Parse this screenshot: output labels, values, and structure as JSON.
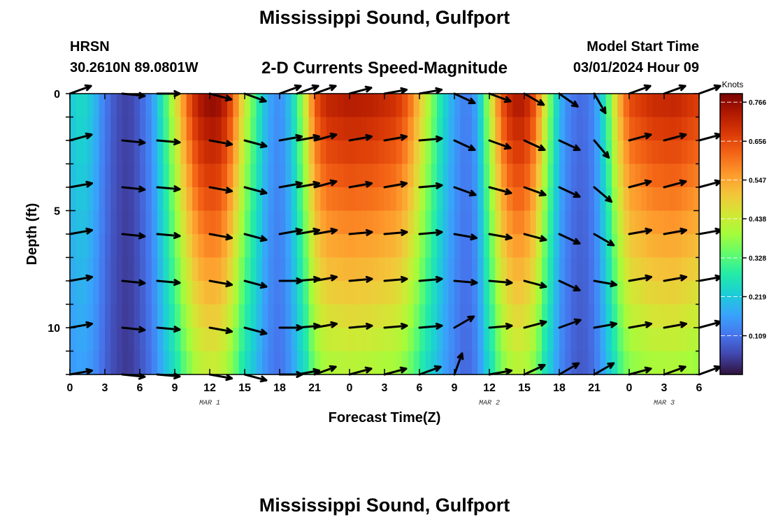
{
  "header": {
    "title": "Mississippi Sound, Gulfport",
    "station": "HRSN",
    "coords": "30.2610N  89.0801W",
    "subtitle": "2-D Currents Speed-Magnitude",
    "model_start_label": "Model Start Time",
    "model_start_value": "03/01/2024 Hour 09"
  },
  "footer": {
    "title": "Mississippi Sound, Gulfport"
  },
  "chart_data": {
    "type": "heatmap",
    "title": "2-D Currents Speed-Magnitude",
    "xlabel": "Forecast Time(Z)",
    "ylabel": "Depth (ft)",
    "x_tick_labels": [
      "0",
      "3",
      "6",
      "9",
      "12",
      "15",
      "18",
      "21",
      "0",
      "3",
      "6",
      "9",
      "12",
      "15",
      "18",
      "21",
      "0",
      "3",
      "6"
    ],
    "x_tick_hours": [
      0,
      3,
      6,
      9,
      12,
      15,
      18,
      21,
      24,
      27,
      30,
      33,
      36,
      39,
      42,
      45,
      48,
      51,
      54
    ],
    "xlim_hours": [
      0,
      54
    ],
    "day_labels": [
      {
        "hour": 12,
        "text": "MAR 1"
      },
      {
        "hour": 36,
        "text": "MAR 2"
      },
      {
        "hour": 51,
        "text": "MAR 3"
      }
    ],
    "y_tick_labels": [
      "0",
      "5",
      "10"
    ],
    "y_tick_values": [
      0,
      5,
      10
    ],
    "ylim_ft": [
      0,
      12
    ],
    "colorbar": {
      "title": "Knots",
      "min": 0.0,
      "max": 0.79,
      "tick_values": [
        0.109,
        0.219,
        0.328,
        0.438,
        0.547,
        0.656,
        0.766
      ],
      "tick_labels": [
        "0.109",
        "0.219",
        "0.328",
        "0.438",
        "0.547",
        "0.656",
        "0.766"
      ]
    },
    "vector_hours": [
      0,
      4.5,
      7.5,
      12,
      15,
      18,
      19.5,
      21,
      24,
      27,
      30,
      33,
      36,
      39,
      42,
      45,
      48,
      51,
      54
    ],
    "vector_depths_ft": [
      0,
      2,
      4,
      6,
      8,
      10,
      12
    ],
    "vector_angles_deg": [
      [
        20,
        -6,
        0,
        -15,
        -20,
        20,
        20,
        20,
        15,
        10,
        10,
        -25,
        -20,
        -30,
        -35,
        -60,
        20,
        20,
        20
      ],
      [
        15,
        -6,
        -5,
        -10,
        -15,
        10,
        10,
        15,
        10,
        10,
        5,
        -25,
        -20,
        -25,
        -25,
        -50,
        15,
        15,
        15
      ],
      [
        10,
        -6,
        -5,
        -10,
        -15,
        10,
        10,
        15,
        10,
        10,
        5,
        -20,
        -15,
        -20,
        -25,
        -40,
        15,
        15,
        15
      ],
      [
        10,
        -6,
        -5,
        -10,
        -15,
        10,
        10,
        10,
        5,
        5,
        5,
        -10,
        -10,
        -15,
        -25,
        -30,
        10,
        10,
        10
      ],
      [
        10,
        -6,
        -5,
        -10,
        -15,
        0,
        5,
        10,
        5,
        5,
        5,
        -5,
        -5,
        -15,
        -25,
        -10,
        10,
        10,
        10
      ],
      [
        10,
        -6,
        -5,
        -10,
        -15,
        0,
        5,
        10,
        5,
        5,
        5,
        30,
        5,
        15,
        20,
        10,
        10,
        10,
        15
      ],
      [
        10,
        -6,
        -5,
        -10,
        -15,
        0,
        10,
        20,
        15,
        15,
        20,
        70,
        10,
        25,
        30,
        30,
        15,
        20,
        20
      ]
    ],
    "speed_knots_by_hour": [
      [
        0,
        0.22
      ],
      [
        1,
        0.25
      ],
      [
        2,
        0.21
      ],
      [
        3,
        0.12
      ],
      [
        4,
        0.07
      ],
      [
        5,
        0.05
      ],
      [
        6,
        0.09
      ],
      [
        7,
        0.15
      ],
      [
        8,
        0.28
      ],
      [
        9,
        0.45
      ],
      [
        10,
        0.62
      ],
      [
        11,
        0.74
      ],
      [
        12,
        0.78
      ],
      [
        13,
        0.76
      ],
      [
        14,
        0.64
      ],
      [
        15,
        0.45
      ],
      [
        16,
        0.3
      ],
      [
        17,
        0.18
      ],
      [
        18,
        0.14
      ],
      [
        19,
        0.22
      ],
      [
        20,
        0.4
      ],
      [
        21,
        0.64
      ],
      [
        22,
        0.72
      ],
      [
        24,
        0.74
      ],
      [
        26,
        0.73
      ],
      [
        28,
        0.7
      ],
      [
        29,
        0.64
      ],
      [
        30,
        0.52
      ],
      [
        31,
        0.38
      ],
      [
        32,
        0.25
      ],
      [
        33,
        0.17
      ],
      [
        34,
        0.12
      ],
      [
        35,
        0.18
      ],
      [
        36,
        0.42
      ],
      [
        37,
        0.64
      ],
      [
        38,
        0.74
      ],
      [
        39,
        0.74
      ],
      [
        40,
        0.64
      ],
      [
        41,
        0.4
      ],
      [
        42,
        0.2
      ],
      [
        43,
        0.12
      ],
      [
        44,
        0.1
      ],
      [
        45,
        0.14
      ],
      [
        46,
        0.28
      ],
      [
        47,
        0.52
      ],
      [
        48,
        0.66
      ],
      [
        50,
        0.71
      ],
      [
        52,
        0.72
      ],
      [
        53,
        0.7
      ],
      [
        54,
        0.68
      ]
    ],
    "speed_depth_scale_at_bottom": 0.55
  }
}
